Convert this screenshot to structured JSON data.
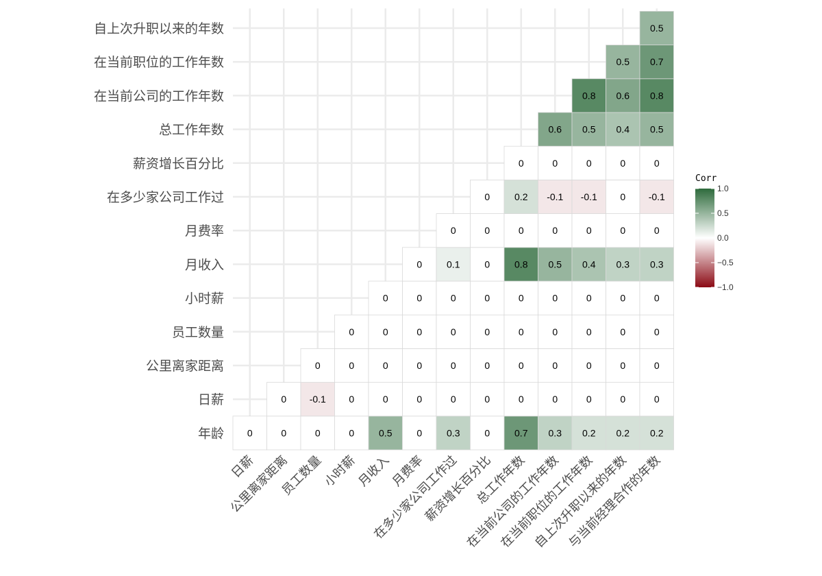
{
  "chart_data": {
    "type": "heatmap",
    "variables": [
      "年龄",
      "日薪",
      "公里离家距离",
      "员工数量",
      "小时薪",
      "月收入",
      "月费率",
      "在多少家公司工作过",
      "薪资增长百分比",
      "总工作年数",
      "在当前公司的工作年数",
      "在当前职位的工作年数",
      "自上次升职以来的年数",
      "与当前经理合作的年数"
    ],
    "y_labels_top_to_bottom": [
      "自上次升职以来的年数",
      "在当前职位的工作年数",
      "在当前公司的工作年数",
      "总工作年数",
      "薪资增长百分比",
      "在多少家公司工作过",
      "月费率",
      "月收入",
      "小时薪",
      "员工数量",
      "公里离家距离",
      "日薪",
      "年龄"
    ],
    "x_labels": [
      "日薪",
      "公里离家距离",
      "员工数量",
      "小时薪",
      "月收入",
      "月费率",
      "在多少家公司工作过",
      "薪资增长百分比",
      "总工作年数",
      "在当前公司的工作年数",
      "在当前职位的工作年数",
      "自上次升职以来的年数",
      "与当前经理合作的年数"
    ],
    "rows": [
      {
        "y": "年龄",
        "values": [
          0,
          0,
          0,
          0,
          0.5,
          0,
          0.3,
          0,
          0.7,
          0.3,
          0.2,
          0.2,
          0.2
        ]
      },
      {
        "y": "日薪",
        "values": [
          0,
          -0.1,
          0,
          0,
          0,
          0,
          0,
          0,
          0,
          0,
          0,
          0
        ]
      },
      {
        "y": "公里离家距离",
        "values": [
          0,
          0,
          0,
          0,
          0,
          0,
          0,
          0,
          0,
          0,
          0
        ]
      },
      {
        "y": "员工数量",
        "values": [
          0,
          0,
          0,
          0,
          0,
          0,
          0,
          0,
          0,
          0
        ]
      },
      {
        "y": "小时薪",
        "values": [
          0,
          0,
          0,
          0,
          0,
          0,
          0,
          0,
          0
        ]
      },
      {
        "y": "月收入",
        "values": [
          0,
          0.1,
          0,
          0.8,
          0.5,
          0.4,
          0.3,
          0.3
        ]
      },
      {
        "y": "月费率",
        "values": [
          0,
          0,
          0,
          0,
          0,
          0,
          0
        ]
      },
      {
        "y": "在多少家公司工作过",
        "values": [
          0,
          0.2,
          -0.1,
          -0.1,
          0,
          -0.1
        ]
      },
      {
        "y": "薪资增长百分比",
        "values": [
          0,
          0,
          0,
          0,
          0
        ]
      },
      {
        "y": "总工作年数",
        "values": [
          0.6,
          0.5,
          0.4,
          0.5
        ]
      },
      {
        "y": "在当前公司的工作年数",
        "values": [
          0.8,
          0.6,
          0.8
        ]
      },
      {
        "y": "在当前职位的工作年数",
        "values": [
          0.5,
          0.7
        ]
      },
      {
        "y": "自上次升职以来的年数",
        "values": [
          0.5
        ]
      }
    ],
    "color_scale": {
      "low": "#8b0a14",
      "mid": "#ffffff",
      "high": "#2e6b3c",
      "limits": [
        -1,
        1
      ]
    },
    "legend": {
      "title": "Corr",
      "ticks": [
        "1.0",
        "0.5",
        "0.0",
        "−0.5",
        "−1.0"
      ],
      "tick_values": [
        1,
        0.5,
        0,
        -0.5,
        -1
      ],
      "position": "right"
    }
  }
}
